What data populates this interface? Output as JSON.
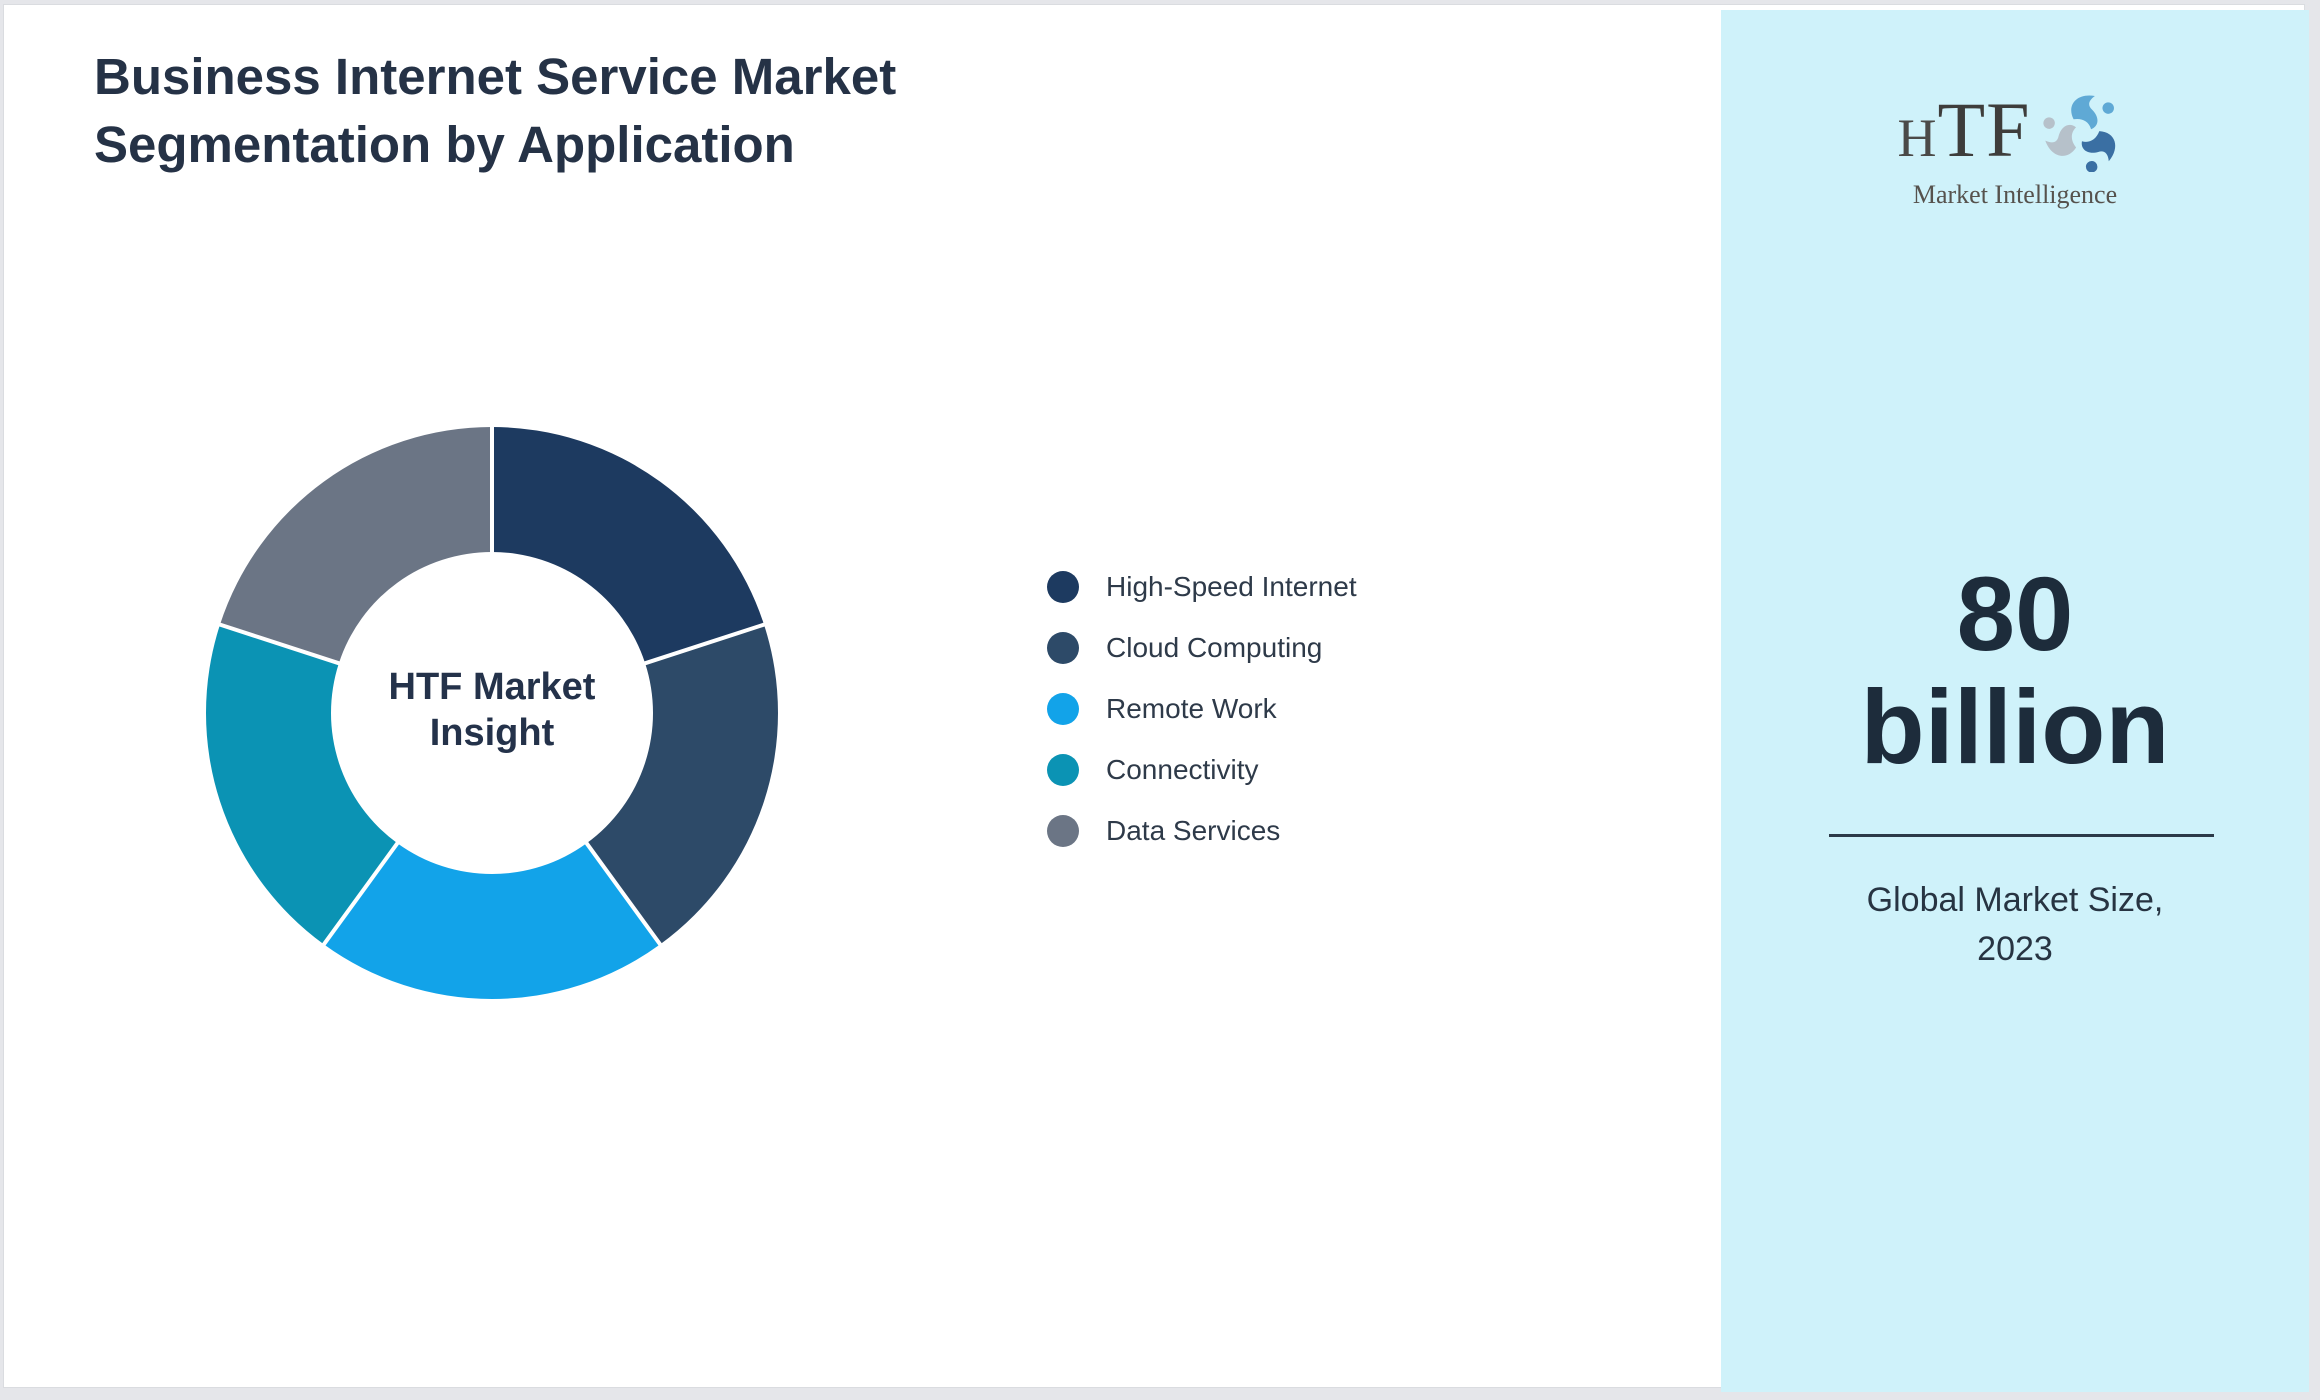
{
  "page": {
    "title": "Business Internet Service Market\nSegmentation by Application"
  },
  "chart_data": {
    "type": "pie",
    "subtype": "donut",
    "title": "Business Internet Service Market Segmentation by Application",
    "center_label": "HTF Market\nInsight",
    "start_angle_deg": 0,
    "direction": "clockwise",
    "inner_radius_ratio": 0.56,
    "legend_position": "right",
    "values_unit": "percent (estimated from equal 72° arcs; no numeric labels shown)",
    "segments": [
      {
        "label": "High-Speed Internet",
        "value": 20,
        "color": "#1d3a60"
      },
      {
        "label": "Cloud Computing",
        "value": 20,
        "color": "#2d4a68"
      },
      {
        "label": "Remote Work",
        "value": 20,
        "color": "#12a3e9"
      },
      {
        "label": "Connectivity",
        "value": 20,
        "color": "#0b93b4"
      },
      {
        "label": "Data Services",
        "value": 20,
        "color": "#6b7585"
      }
    ]
  },
  "sidebar": {
    "background_color": "#cff2fa",
    "logo_text": "HTF",
    "logo_subtext": "Market Intelligence",
    "logo_icon_colors": [
      "#5fa9d5",
      "#3a6fa3",
      "#b6c1ca"
    ],
    "stat_value": "80\nbillion",
    "stat_label": "Global Market Size,\n2023",
    "divider_color": "#2c3a48",
    "stat_text_color": "#1d2c3b"
  },
  "colors": {
    "title_text": "#253246",
    "legend_text": "#2e3a49",
    "card_background": "#ffffff",
    "page_border": "#e5e6ea",
    "segment_separator": "#ffffff"
  }
}
